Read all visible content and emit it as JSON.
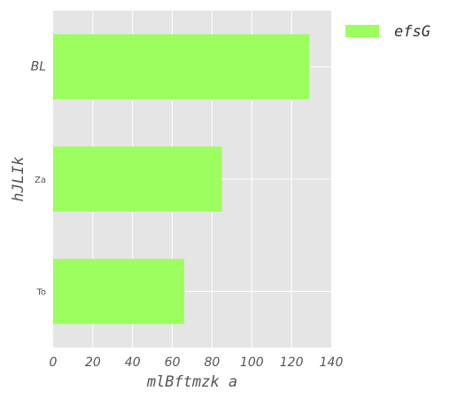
{
  "chart_data": {
    "type": "bar",
    "orientation": "horizontal",
    "categories": [
      "To",
      "Za",
      "BL"
    ],
    "series": [
      {
        "name": "efsG",
        "values": [
          66,
          85,
          129
        ],
        "color": "#9cff5f"
      }
    ],
    "xlabel": "mlBftmzk a",
    "ylabel": "hJLIk",
    "xlim": [
      0,
      140
    ],
    "xticks": [
      0,
      20,
      40,
      60,
      80,
      100,
      120,
      140
    ],
    "grid": true,
    "background": "#e5e5e5",
    "legend": "outside-top-right"
  }
}
